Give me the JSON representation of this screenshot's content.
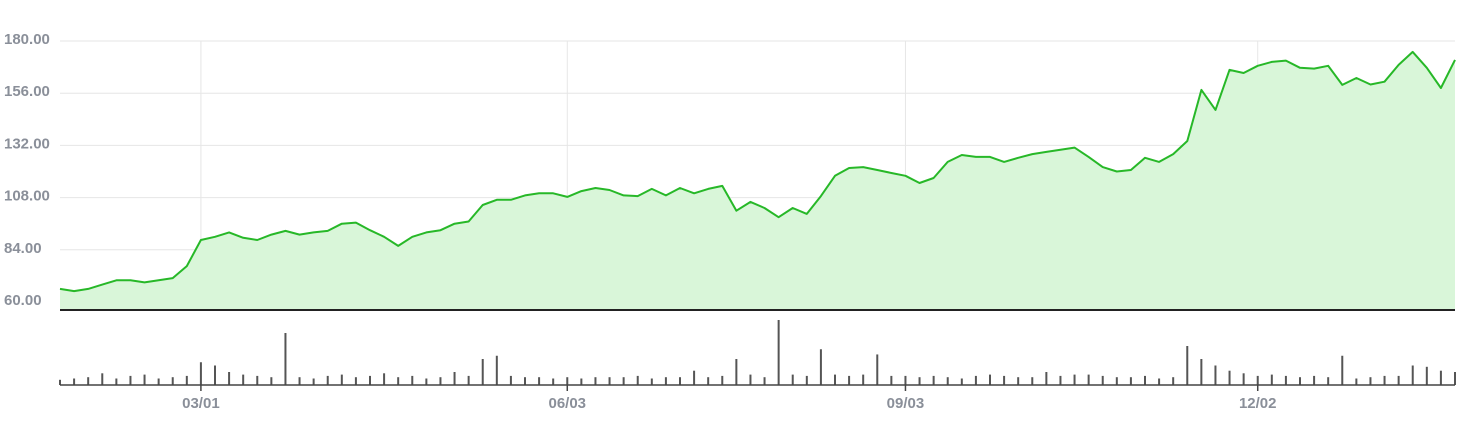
{
  "chart_data": {
    "type": "line",
    "categories": [
      null,
      null,
      null,
      null,
      null,
      null,
      null,
      null,
      null,
      null,
      "03/01",
      null,
      null,
      null,
      null,
      null,
      null,
      null,
      null,
      null,
      null,
      null,
      null,
      null,
      null,
      null,
      null,
      null,
      null,
      null,
      null,
      null,
      null,
      null,
      null,
      null,
      "06/03",
      null,
      null,
      null,
      null,
      null,
      null,
      null,
      null,
      null,
      null,
      null,
      null,
      null,
      null,
      null,
      null,
      null,
      null,
      null,
      null,
      null,
      null,
      null,
      "09/03",
      null,
      null,
      null,
      null,
      null,
      null,
      null,
      null,
      null,
      null,
      null,
      null,
      null,
      null,
      null,
      null,
      null,
      null,
      null,
      null,
      null,
      null,
      null,
      null,
      "12/02",
      null,
      null,
      null,
      null,
      null,
      null,
      null,
      null,
      null,
      null,
      null,
      null,
      null,
      null
    ],
    "series": [
      {
        "color": "#27b828",
        "fill": "#d9f6d9",
        "values": [
          66,
          65,
          66,
          68,
          70,
          70,
          69,
          70,
          71,
          76.5,
          88.5,
          90,
          92,
          89.5,
          88.5,
          91,
          92.7,
          91,
          92,
          92.7,
          96,
          96.5,
          93,
          90,
          85.8,
          90,
          92,
          93,
          96,
          97,
          104.6,
          107,
          107,
          109,
          110,
          110,
          108.3,
          111,
          112.4,
          111.5,
          109,
          108.7,
          112,
          109,
          112.4,
          110,
          112,
          113.4,
          102,
          106,
          103.2,
          99,
          103.2,
          100.5,
          108.7,
          118,
          121.6,
          122,
          120.7,
          119.3,
          118,
          114.7,
          117,
          124.4,
          127.6,
          126.7,
          126.7,
          124.4,
          126.3,
          128,
          129,
          130,
          131,
          126.7,
          122,
          120,
          120.7,
          126.3,
          124.4,
          128,
          134,
          157.5,
          148.3,
          166.7,
          165.3,
          168.6,
          170.4,
          171,
          167.7,
          167.3,
          168.6,
          159.8,
          163,
          160,
          161.3,
          169,
          175,
          167.7,
          158.4,
          171.3
        ]
      },
      {
        "type": "bar",
        "color": "#555555",
        "values": [
          8,
          10,
          12,
          18,
          10,
          14,
          16,
          10,
          12,
          14,
          35,
          30,
          20,
          16,
          14,
          12,
          80,
          12,
          10,
          14,
          16,
          12,
          14,
          18,
          12,
          14,
          10,
          12,
          20,
          14,
          40,
          45,
          14,
          12,
          12,
          10,
          12,
          10,
          12,
          12,
          12,
          14,
          10,
          12,
          12,
          22,
          12,
          14,
          40,
          16,
          12,
          100,
          16,
          14,
          55,
          16,
          14,
          16,
          47,
          14,
          14,
          12,
          14,
          12,
          10,
          14,
          16,
          14,
          12,
          12,
          20,
          14,
          16,
          16,
          14,
          12,
          12,
          14,
          10,
          12,
          60,
          40,
          30,
          22,
          18,
          14,
          16,
          14,
          12,
          14,
          12,
          45,
          10,
          12,
          14,
          14,
          30,
          28,
          22,
          20
        ]
      }
    ],
    "ylim": [
      60,
      180
    ],
    "yticks": [
      {
        "value": 60,
        "label": "60.00"
      },
      {
        "value": 84,
        "label": "84.00"
      },
      {
        "value": 108,
        "label": "108.00"
      },
      {
        "value": 132,
        "label": "132.00"
      },
      {
        "value": 156,
        "label": "156.00"
      },
      {
        "value": 180,
        "label": "180.00"
      }
    ],
    "grid": true
  }
}
